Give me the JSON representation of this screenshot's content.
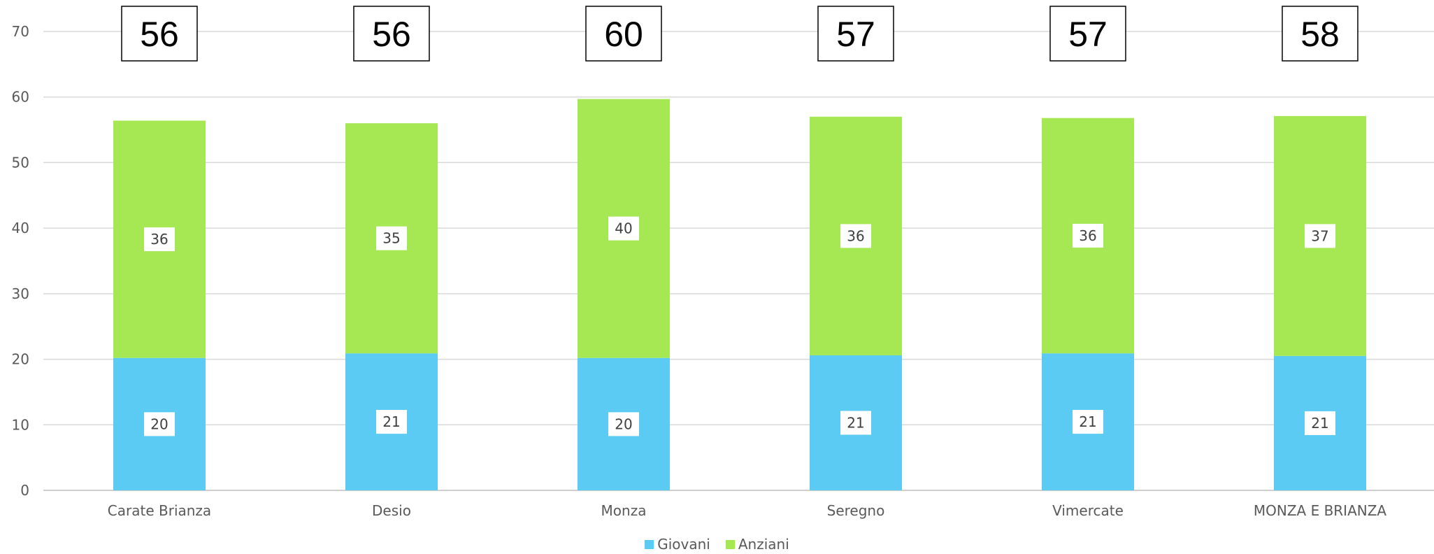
{
  "chart_data": {
    "type": "bar",
    "stacked": true,
    "categories": [
      "Carate Brianza",
      "Desio",
      "Monza",
      "Seregno",
      "Vimercate",
      "MONZA E BRIANZA"
    ],
    "series": [
      {
        "name": "Giovani",
        "color": "#5ccbf3",
        "values": [
          20.2,
          20.9,
          20.2,
          20.6,
          20.9,
          20.5
        ],
        "labels": [
          "20",
          "21",
          "20",
          "21",
          "21",
          "21"
        ]
      },
      {
        "name": "Anziani",
        "color": "#a5e853",
        "values": [
          36.2,
          35.1,
          39.5,
          36.4,
          35.9,
          36.6
        ],
        "labels": [
          "36",
          "35",
          "40",
          "36",
          "36",
          "37"
        ]
      }
    ],
    "totals": [
      "56",
      "56",
      "60",
      "57",
      "57",
      "58"
    ],
    "yticks": [
      "0",
      "10",
      "20",
      "30",
      "40",
      "50",
      "60",
      "70"
    ],
    "ylim": [
      0,
      70
    ],
    "grid": true,
    "legend_position": "bottom"
  }
}
